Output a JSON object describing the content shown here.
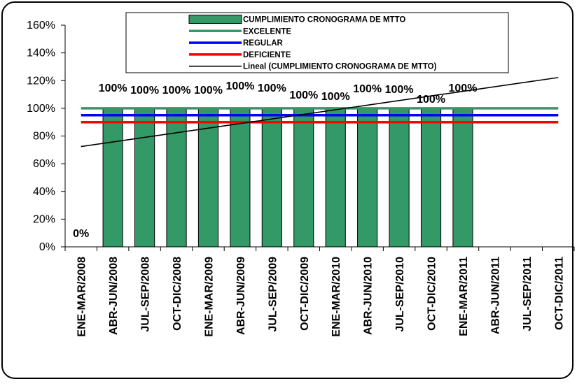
{
  "chart_data": {
    "type": "bar",
    "categories": [
      "ENE-MAR/2008",
      "ABR-JUN/2008",
      "JUL-SEP/2008",
      "OCT-DIC/2008",
      "ENE-MAR/2009",
      "ABR-JUN/2009",
      "JUL-SEP/2009",
      "OCT-DIC/2009",
      "ENE-MAR/2010",
      "ABR-JUN/2010",
      "JUL-SEP/2010",
      "OCT-DIC/2010",
      "ENE-MAR/2011",
      "ABR-JUN/2011",
      "JUL-SEP/2011",
      "OCT-DIC/2011"
    ],
    "series": [
      {
        "name": "CUMPLIMIENTO CRONOGRAMA DE MTTO",
        "kind": "bar",
        "color": "#339966",
        "values": [
          0,
          100,
          100,
          100,
          100,
          100,
          100,
          100,
          100,
          100,
          100,
          100,
          100,
          null,
          null,
          null
        ],
        "labels": [
          "0%",
          "100%",
          "100%",
          "100%",
          "100%",
          "100%",
          "100%",
          "100%",
          "100%",
          "100%",
          "100%",
          "100%",
          "100%",
          "",
          "",
          ""
        ]
      },
      {
        "name": "EXCELENTE",
        "kind": "line",
        "color": "#339966",
        "value": 100
      },
      {
        "name": "REGULAR",
        "kind": "line",
        "color": "#0000ff",
        "value": 95
      },
      {
        "name": "DEFICIENTE",
        "kind": "line",
        "color": "#ff0000",
        "value": 90
      },
      {
        "name": "Lineal (CUMPLIMIENTO CRONOGRAMA DE MTTO)",
        "kind": "trend",
        "color": "#000000",
        "start": 72.4,
        "end": 122.2
      }
    ],
    "ylim": [
      0,
      160
    ],
    "yticks": [
      "0%",
      "20%",
      "40%",
      "60%",
      "80%",
      "100%",
      "120%",
      "140%",
      "160%"
    ],
    "legend_position": "top-center",
    "grid": false
  }
}
